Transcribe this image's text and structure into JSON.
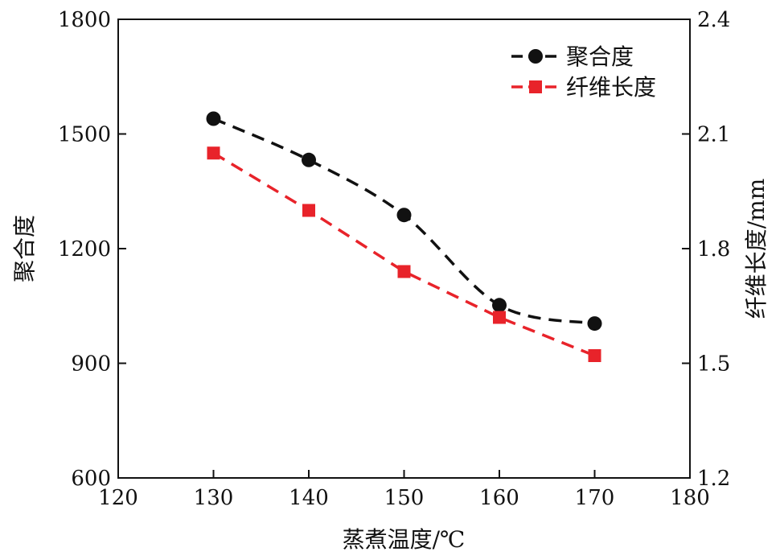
{
  "chart_data": {
    "type": "line",
    "xlabel": "蒸煮温度/℃",
    "ylabel_left": "聚合度",
    "ylabel_right": "纤维长度/mm",
    "xlim": [
      120,
      180
    ],
    "ylim_left": [
      600,
      1800
    ],
    "ylim_right": [
      1.2,
      2.4
    ],
    "x_ticks": [
      "120",
      "130",
      "140",
      "150",
      "160",
      "170",
      "180"
    ],
    "y_left_ticks": [
      "600",
      "900",
      "1200",
      "1500",
      "1800"
    ],
    "y_right_ticks": [
      "1.2",
      "1.5",
      "1.8",
      "2.1",
      "2.4"
    ],
    "x": [
      130,
      140,
      150,
      160,
      170
    ],
    "series": [
      {
        "name": "聚合度",
        "axis": "left",
        "values": [
          1540,
          1432,
          1288,
          1052,
          1004
        ],
        "color": "#111111",
        "marker": "circle",
        "line_style": "dashed"
      },
      {
        "name": "纤维长度",
        "axis": "right",
        "values": [
          2.05,
          1.9,
          1.74,
          1.62,
          1.52
        ],
        "color": "#e8232a",
        "marker": "square",
        "line_style": "dashed"
      }
    ],
    "legend": {
      "placement": "top-right"
    },
    "grid": false
  }
}
